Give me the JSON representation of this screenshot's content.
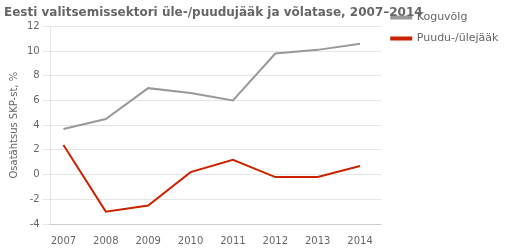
{
  "chart_data": {
    "type": "line",
    "title": "Eesti valitsemissektori üle-/puudujääk ja võlatase, 2007–2014",
    "ylabel": "Osatähtsus SKP-st, %",
    "x": [
      2007,
      2008,
      2009,
      2010,
      2011,
      2012,
      2013,
      2014
    ],
    "series": [
      {
        "name": "Koguvõlg",
        "color": "#999999",
        "values": [
          3.7,
          4.5,
          7.0,
          6.6,
          6.0,
          9.8,
          10.1,
          10.6
        ]
      },
      {
        "name": "Puudu-/ülejääk",
        "color": "#cc2200",
        "values": [
          2.4,
          -3.0,
          -2.5,
          0.2,
          1.2,
          -0.2,
          -0.2,
          0.7
        ]
      }
    ],
    "xlim": [
      2006.7,
      2014.5
    ],
    "xticks": [
      2007,
      2008,
      2009,
      2010,
      2011,
      2012,
      2013,
      2014
    ],
    "ylim": [
      -4,
      12
    ],
    "yticks": [
      -4,
      -2,
      0,
      2,
      4,
      6,
      8,
      10,
      12
    ],
    "grid": "y",
    "legend": "right"
  }
}
